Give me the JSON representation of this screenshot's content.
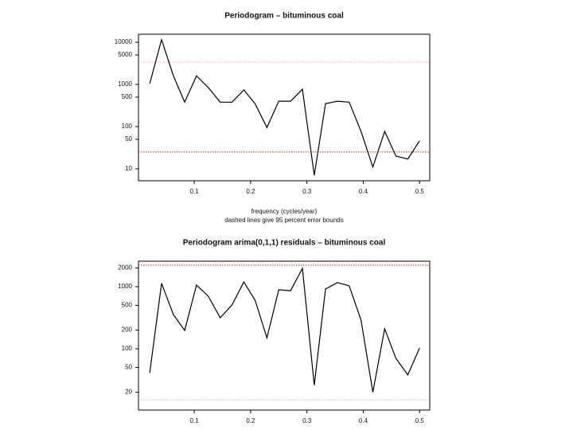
{
  "chart_data": [
    {
      "type": "line",
      "title": "Periodogram – bituminous coal",
      "x_label": "frequency (cycles/year)",
      "subtitle": "dashed lines give 95 percent error bounds",
      "log_y": true,
      "x": [
        0.021,
        0.042,
        0.063,
        0.083,
        0.104,
        0.125,
        0.146,
        0.167,
        0.188,
        0.208,
        0.229,
        0.25,
        0.271,
        0.292,
        0.313,
        0.333,
        0.354,
        0.375,
        0.396,
        0.417,
        0.438,
        0.458,
        0.479,
        0.5
      ],
      "series": [
        {
          "color": "#000000",
          "values": [
            1050,
            11500,
            1600,
            380,
            1600,
            840,
            380,
            380,
            740,
            350,
            95,
            400,
            400,
            770,
            7,
            350,
            400,
            380,
            77,
            11,
            77,
            20,
            17,
            46
          ]
        }
      ],
      "hlines": [
        {
          "value": 3400,
          "color": "#f4a0a0"
        },
        {
          "value": 25,
          "color": "#cc2222"
        }
      ],
      "xlim": [
        0.001,
        0.518
      ],
      "xticks": [
        0.1,
        0.2,
        0.3,
        0.4,
        0.5
      ],
      "ylim": [
        5.2,
        15500
      ],
      "yticks": [
        10,
        50,
        100,
        500,
        1000,
        5000,
        10000
      ]
    },
    {
      "type": "line",
      "title": "Periodogram arima(0,1,1) residuals – bituminous coal",
      "log_y": true,
      "x": [
        0.021,
        0.042,
        0.063,
        0.083,
        0.104,
        0.125,
        0.146,
        0.167,
        0.188,
        0.208,
        0.229,
        0.25,
        0.271,
        0.292,
        0.313,
        0.333,
        0.354,
        0.375,
        0.396,
        0.417,
        0.438,
        0.458,
        0.479,
        0.5
      ],
      "series": [
        {
          "color": "#000000",
          "values": [
            41,
            1130,
            355,
            197,
            1060,
            700,
            316,
            507,
            1190,
            605,
            150,
            890,
            860,
            1970,
            26,
            915,
            1160,
            1030,
            290,
            20,
            210,
            70,
            38,
            103
          ]
        }
      ],
      "hlines": [
        {
          "value": 2220,
          "color": "#cc2222"
        },
        {
          "value": 15,
          "color": "#f4a0a0"
        }
      ],
      "xlim": [
        0.001,
        0.518
      ],
      "xticks": [
        0.1,
        0.2,
        0.3,
        0.4,
        0.5
      ],
      "ylim": [
        10.3,
        2570
      ],
      "yticks": [
        20,
        50,
        100,
        200,
        500,
        1000,
        2000
      ]
    }
  ]
}
